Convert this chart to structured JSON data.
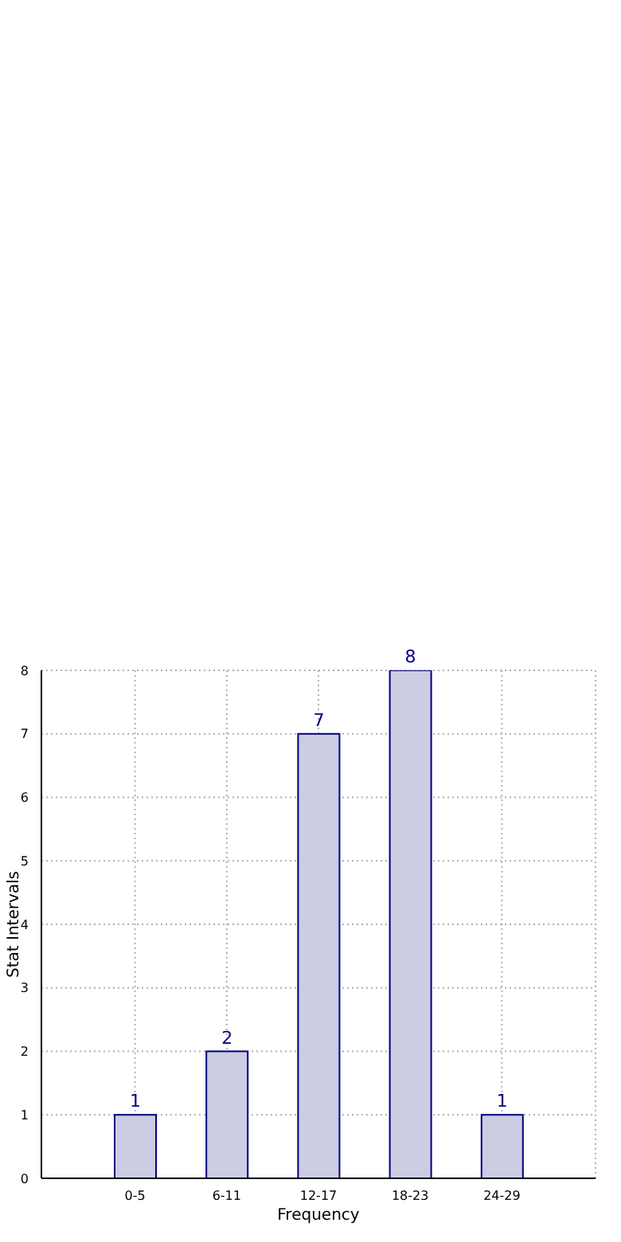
{
  "chart_data": {
    "type": "bar",
    "xlabel": "Frequency",
    "ylabel": "Stat Intervals",
    "categories": [
      "0-5",
      "6-11",
      "12-17",
      "18-23",
      "24-29"
    ],
    "values": [
      1,
      2,
      7,
      8,
      1
    ],
    "color": "#cccce3",
    "ylim": [
      0,
      8
    ],
    "yticks": [
      0,
      1,
      2,
      3,
      4,
      5,
      6,
      7,
      8
    ],
    "grid": true,
    "data_labels": true
  }
}
